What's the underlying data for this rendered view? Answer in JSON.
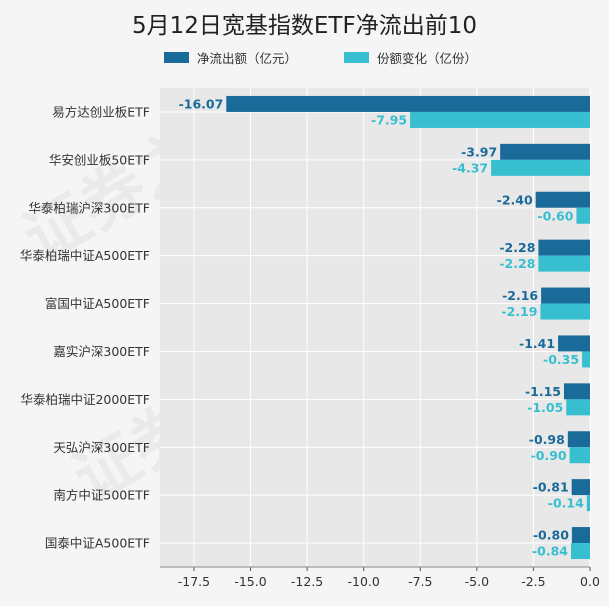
{
  "title": "5月12日宽基指数ETF净流出前10",
  "watermark": "证券之星",
  "colors": {
    "plot_bg": "#e8e8e8",
    "grid": "#ffffff",
    "series1": "#1a6a9a",
    "series2": "#37bfd0"
  },
  "chart_data": {
    "type": "bar",
    "orientation": "horizontal",
    "title": "5月12日宽基指数ETF净流出前10",
    "categories": [
      "易方达创业板ETF",
      "华安创业板50ETF",
      "华泰柏瑞沪深300ETF",
      "华泰柏瑞中证A500ETF",
      "富国中证A500ETF",
      "嘉实沪深300ETF",
      "华泰柏瑞中证2000ETF",
      "天弘沪深300ETF",
      "南方中证500ETF",
      "国泰中证A500ETF"
    ],
    "series": [
      {
        "name": "净流出额（亿元）",
        "values": [
          -16.07,
          -3.97,
          -2.4,
          -2.28,
          -2.16,
          -1.41,
          -1.15,
          -0.98,
          -0.81,
          -0.8
        ],
        "labels": [
          "-16.07",
          "-3.97",
          "-2.40",
          "-2.28",
          "-2.16",
          "-1.41",
          "-1.15",
          "-0.98",
          "-0.81",
          "-0.80"
        ]
      },
      {
        "name": "份额变化（亿份）",
        "values": [
          -7.95,
          -4.37,
          -0.6,
          -2.28,
          -2.19,
          -0.35,
          -1.05,
          -0.9,
          -0.14,
          -0.84
        ],
        "labels": [
          "-7.95",
          "-4.37",
          "-0.60",
          "-2.28",
          "-2.19",
          "-0.35",
          "-1.05",
          "-0.90",
          "-0.14",
          "-0.84"
        ]
      }
    ],
    "xlim": [
      -19.0,
      0.0
    ],
    "xticks": [
      -17.5,
      -15.0,
      -12.5,
      -10.0,
      -7.5,
      -5.0,
      -2.5,
      0.0
    ],
    "xtick_labels": [
      "-17.5",
      "-15.0",
      "-12.5",
      "-10.0",
      "-7.5",
      "-5.0",
      "-2.5",
      "0.0"
    ],
    "grid": true,
    "legend_position": "top"
  }
}
